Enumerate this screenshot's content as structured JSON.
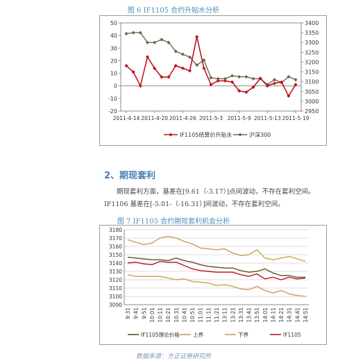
{
  "figure6": {
    "caption": "图 6  IF1105 合约升贴水分析",
    "legend": [
      "IF1105结算价升贴水",
      "沪深300"
    ],
    "left_ticks": [
      "50",
      "40",
      "30",
      "20",
      "10",
      "0",
      "-10",
      "-20"
    ],
    "right_ticks": [
      "3400",
      "3350",
      "3300",
      "3250",
      "3200",
      "3150",
      "3100",
      "3050",
      "3000",
      "2950"
    ],
    "x_labels": [
      "2011-4-14",
      "2011-4-20",
      "2011-4-26",
      "2011-5-3",
      "2011-5-9",
      "2011-5-13",
      "2011-5-19"
    ]
  },
  "section": {
    "heading": "2、期现套利",
    "line1": "期现套利方面，基差在[9.61（-3.17）]点间波动，不存在套利空间。",
    "line2": "IF1106 基差在[-5.01-（-16.31）]间波动，不存在套利空间。"
  },
  "figure7": {
    "caption": "图 7  IF1105 合约期现套利机会分析",
    "left_ticks": [
      "3180",
      "3170",
      "3160",
      "3150",
      "3140",
      "3130",
      "3120",
      "3110",
      "3100",
      "3090"
    ],
    "x_labels": [
      "9:31",
      "9:41",
      "9:51",
      "10:01",
      "10:11",
      "10:21",
      "10:31",
      "10:41",
      "10:51",
      "11:01",
      "11:11",
      "11:21",
      "13:11",
      "13:21",
      "13:31",
      "13:41",
      "13:51",
      "14:01",
      "14:11",
      "14:21",
      "14:31",
      "14:41",
      "14:51"
    ],
    "legend": [
      "IF1105理论价格",
      "上界",
      "下界",
      "IF1105"
    ]
  },
  "footnote": "数据来源：方正证券研究所",
  "colors": {
    "red": "#c0141b",
    "grey": "#6e6650",
    "olive": "#5c5426",
    "gold": "#c8a14a",
    "caption": "#4a8fb8"
  },
  "chart_data": [
    {
      "type": "line",
      "title": "图 6  IF1105 合约升贴水分析",
      "categories": [
        "2011-4-14",
        "2011-4-15",
        "2011-4-18",
        "2011-4-19",
        "2011-4-20",
        "2011-4-21",
        "2011-4-22",
        "2011-4-25",
        "2011-4-26",
        "2011-4-27",
        "2011-4-28",
        "2011-4-29",
        "2011-5-3",
        "2011-5-4",
        "2011-5-5",
        "2011-5-6",
        "2011-5-9",
        "2011-5-10",
        "2011-5-11",
        "2011-5-12",
        "2011-5-13",
        "2011-5-16",
        "2011-5-17",
        "2011-5-18",
        "2011-5-19"
      ],
      "series": [
        {
          "name": "IF1105结算价升贴水",
          "axis": "left",
          "values": [
            16,
            11,
            0,
            23,
            14,
            7,
            7,
            16,
            14,
            12,
            39,
            14,
            1,
            4,
            4,
            3,
            -4,
            -5,
            -1,
            6,
            0,
            2,
            3,
            -8,
            1
          ]
        },
        {
          "name": "沪深300",
          "axis": "right",
          "values": [
            3345,
            3350,
            3350,
            3300,
            3300,
            3315,
            3300,
            3255,
            3240,
            3225,
            3185,
            3210,
            3120,
            3115,
            3115,
            3130,
            3125,
            3125,
            3115,
            3115,
            3085,
            3110,
            3095,
            3125,
            3110
          ]
        }
      ],
      "ylim": [
        -20,
        50
      ],
      "y2lim": [
        2950,
        3400
      ]
    },
    {
      "type": "line",
      "title": "图 7  IF1105 合约期现套利机会分析",
      "ylim": [
        3090,
        3180
      ],
      "series": [
        {
          "name": "IF1105理论价格",
          "values": [
            3147,
            3146,
            3145,
            3144,
            3144,
            3143,
            3146,
            3143,
            3141,
            3138,
            3136,
            3135,
            3134,
            3134,
            3131,
            3129,
            3130,
            3133,
            3128,
            3125,
            3125,
            3123,
            3123
          ]
        },
        {
          "name": "上界",
          "values": [
            3168,
            3165,
            3162,
            3164,
            3170,
            3172,
            3170,
            3166,
            3163,
            3158,
            3157,
            3156,
            3157,
            3152,
            3149,
            3150,
            3156,
            3146,
            3144,
            3146,
            3148,
            3145,
            3142
          ]
        },
        {
          "name": "下界",
          "values": [
            3126,
            3124,
            3124,
            3124,
            3124,
            3122,
            3120,
            3121,
            3118,
            3117,
            3116,
            3113,
            3114,
            3112,
            3109,
            3108,
            3112,
            3107,
            3104,
            3107,
            3103,
            3101,
            3100
          ]
        },
        {
          "name": "IF1105",
          "values": [
            3140,
            3141,
            3139,
            3138,
            3142,
            3141,
            3141,
            3137,
            3133,
            3131,
            3130,
            3129,
            3129,
            3129,
            3126,
            3124,
            3127,
            3121,
            3123,
            3120,
            3123,
            3121,
            3122
          ]
        }
      ]
    }
  ]
}
